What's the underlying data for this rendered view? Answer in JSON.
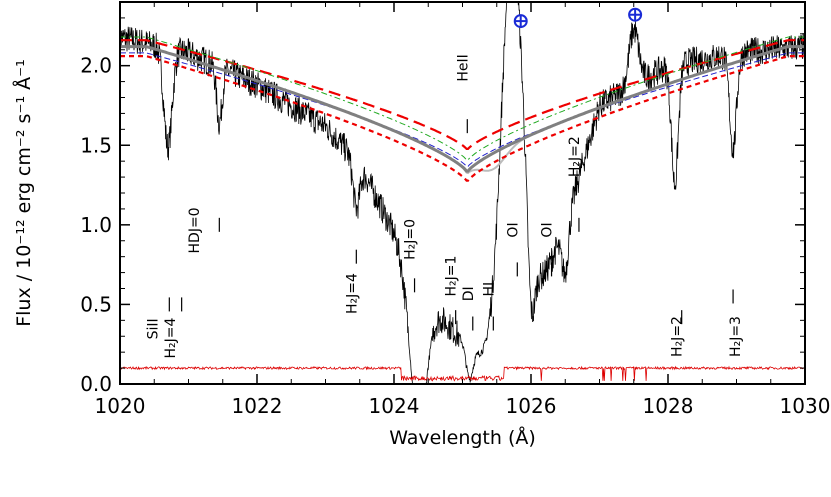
{
  "chart_data": {
    "type": "line",
    "xlabel": "Wavelength (Å)",
    "ylabel": "Flux / 10⁻¹² erg cm⁻² s⁻¹ Å⁻¹",
    "xlim": [
      1020,
      1030
    ],
    "ylim": [
      0,
      2.4
    ],
    "x_ticks": [
      1020,
      1022,
      1024,
      1026,
      1028,
      1030
    ],
    "y_ticks": [
      0.0,
      0.5,
      1.0,
      1.5,
      2.0
    ],
    "x_tick_labels": [
      "1020",
      "1022",
      "1024",
      "1026",
      "1028",
      "1030"
    ],
    "y_tick_labels": [
      "0.0",
      "0.5",
      "1.0",
      "1.5",
      "2.0"
    ],
    "grid": false,
    "legend": "none",
    "colors": {
      "observed": "#000000",
      "error": "#dd0000",
      "model_grey": "#808080",
      "model_light": "#bbbbbb",
      "bound_red": "#ee0000",
      "model_green": "#22aa22",
      "model_blue": "#2222cc",
      "earth_symbol": "#1a2bd6"
    },
    "lya_center": 1025.07,
    "series": [
      {
        "role": "observed",
        "continuum": [
          [
            1020,
            2.18
          ],
          [
            1021,
            2.08
          ],
          [
            1022,
            1.88
          ],
          [
            1023,
            1.62
          ],
          [
            1023.5,
            1.38
          ],
          [
            1024,
            0.95
          ],
          [
            1024.4,
            0.55
          ],
          [
            1025.5,
            0.05
          ],
          [
            1026,
            0.45
          ],
          [
            1026.5,
            1.0
          ],
          [
            1027,
            1.75
          ],
          [
            1028,
            2.0
          ],
          [
            1029,
            2.08
          ],
          [
            1030,
            2.12
          ]
        ],
        "absorption_lines": [
          {
            "x": 1020.7,
            "depth": 0.62,
            "width": 0.06
          },
          {
            "x": 1021.45,
            "depth": 0.35,
            "width": 0.04
          },
          {
            "x": 1023.45,
            "depth": 0.3,
            "width": 0.05
          },
          {
            "x": 1024.35,
            "depth": 0.85,
            "width": 0.12
          },
          {
            "x": 1025.1,
            "depth": 0.2,
            "width": 0.05
          },
          {
            "x": 1026.0,
            "depth": 0.5,
            "width": 0.05
          },
          {
            "x": 1026.5,
            "depth": 0.3,
            "width": 0.05
          },
          {
            "x": 1028.1,
            "depth": 0.75,
            "width": 0.05
          },
          {
            "x": 1028.95,
            "depth": 0.6,
            "width": 0.05
          }
        ],
        "emission_lines": [
          {
            "x": 1025.72,
            "height": 2.5,
            "width": 0.16
          },
          {
            "x": 1027.5,
            "height": 0.35,
            "width": 0.07
          }
        ]
      },
      {
        "role": "error",
        "level": 0.1
      },
      {
        "role": "model_grey",
        "center_value": 1.33,
        "edge_value": 2.12
      },
      {
        "role": "model_light",
        "center_value": 1.33,
        "edge_value": 2.12
      },
      {
        "role": "bound_upper",
        "center_value": 1.47,
        "edge_value": 2.16
      },
      {
        "role": "bound_lower",
        "center_value": 1.27,
        "edge_value": 2.06
      },
      {
        "role": "model_green",
        "center_value": 1.4,
        "edge_value": 2.18
      },
      {
        "role": "model_blue",
        "center_value": 1.36,
        "edge_value": 2.08
      }
    ],
    "earth_markers": [
      {
        "x": 1025.85,
        "y": 2.28
      },
      {
        "x": 1027.52,
        "y": 2.32
      }
    ],
    "annotations": [
      {
        "label": "SiII",
        "x": 1020.55,
        "y": 0.28,
        "rotate": -90,
        "dash_x": 1020.72,
        "dash_y": 0.5
      },
      {
        "label": "H₂J=4",
        "x": 1020.8,
        "y": 0.16,
        "rotate": -90,
        "dash_x": 1020.9,
        "dash_y": 0.5
      },
      {
        "label": "HDJ=0",
        "x": 1021.15,
        "y": 0.82,
        "rotate": -90,
        "dash_x": 1021.45,
        "dash_y": 1.0
      },
      {
        "label": "H₂J=4",
        "x": 1023.45,
        "y": 0.44,
        "rotate": -90,
        "dash_x": 1023.45,
        "dash_y": 0.8
      },
      {
        "label": "H₂J=0",
        "x": 1024.3,
        "y": 0.78,
        "rotate": -90,
        "dash_x": 1024.3,
        "dash_y": 0.62
      },
      {
        "label": "H₂J=1",
        "x": 1024.9,
        "y": 0.55,
        "rotate": -90,
        "dash_x": 1024.9,
        "dash_y": 0.42
      },
      {
        "label": "DI",
        "x": 1025.15,
        "y": 0.52,
        "rotate": -90,
        "dash_x": 1025.15,
        "dash_y": 0.38
      },
      {
        "label": "HI",
        "x": 1025.45,
        "y": 0.55,
        "rotate": -90,
        "dash_x": 1025.45,
        "dash_y": 0.38
      },
      {
        "label": "OI",
        "x": 1025.8,
        "y": 0.92,
        "rotate": -90,
        "dash_x": 1025.8,
        "dash_y": 0.72
      },
      {
        "label": "OI",
        "x": 1026.3,
        "y": 0.92,
        "rotate": -90,
        "dash_x": 1026.3,
        "dash_y": 0.72
      },
      {
        "label": "H₂J=2",
        "x": 1026.7,
        "y": 1.3,
        "rotate": -90,
        "dash_x": 1026.7,
        "dash_y": 1.0
      },
      {
        "label": "HeII",
        "x": 1025.07,
        "y": 1.9,
        "rotate": -90,
        "dash_x": 1025.07,
        "dash_y": 1.62
      },
      {
        "label": "H₂J=2",
        "x": 1028.2,
        "y": 0.17,
        "rotate": -90,
        "dash_x": 1028.2,
        "dash_y": 0.42
      },
      {
        "label": "H₂J=3",
        "x": 1029.05,
        "y": 0.17,
        "rotate": -90,
        "dash_x": 1028.95,
        "dash_y": 0.55
      }
    ]
  }
}
